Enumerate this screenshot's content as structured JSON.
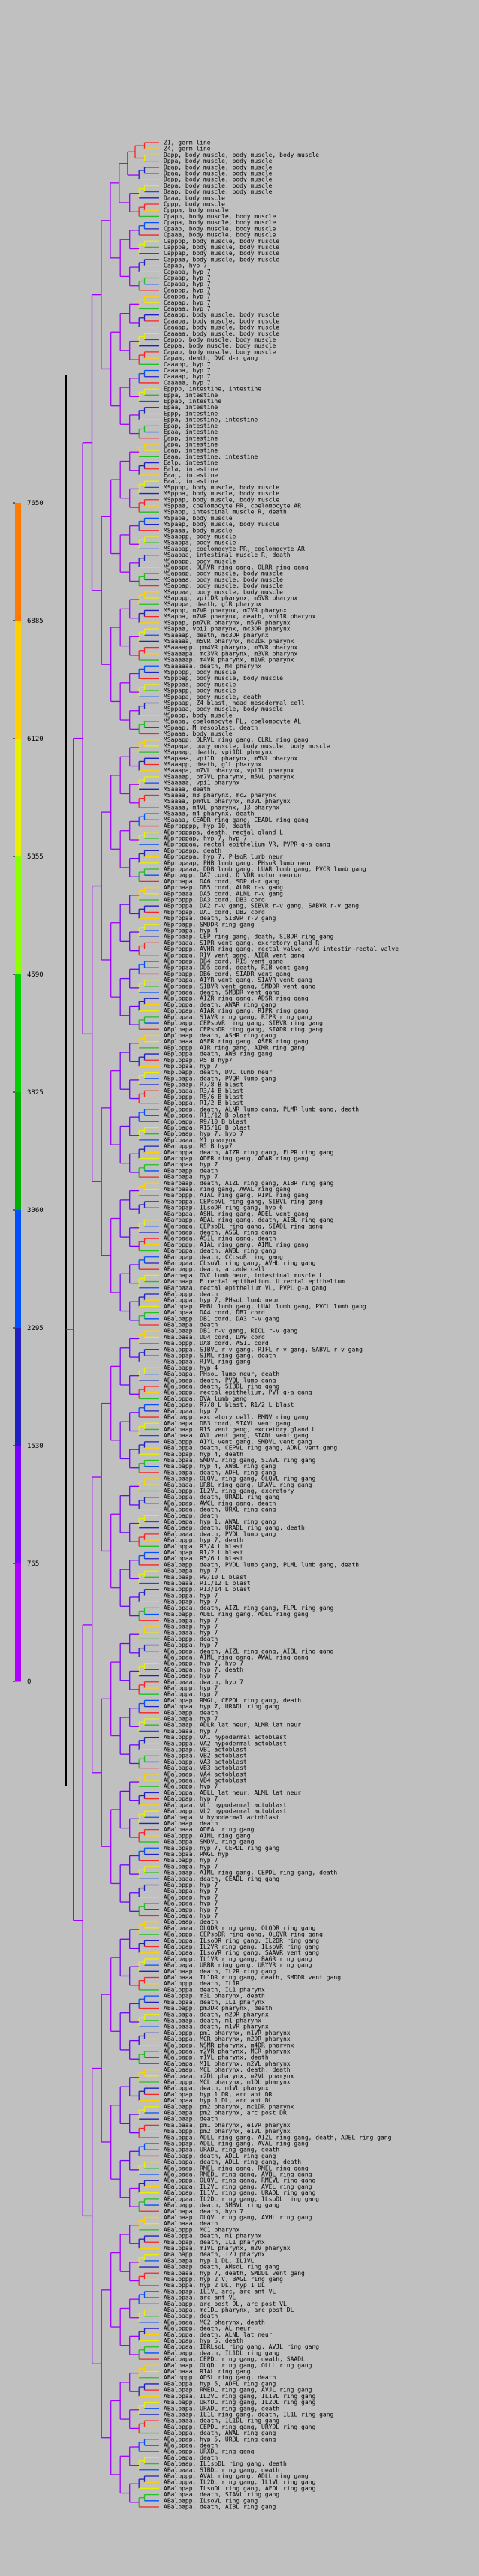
{
  "legend": {
    "ticks": [
      "7650",
      "6885",
      "6120",
      "5355",
      "4590",
      "3825",
      "3060",
      "2295",
      "1530",
      "765",
      "0"
    ],
    "colors": [
      "#ff7a00",
      "#ffcf00",
      "#e8f000",
      "#8cff00",
      "#00d000",
      "#00b000",
      "#0050ff",
      "#2020c0",
      "#7a00ff",
      "#b000ff"
    ]
  },
  "tree": {
    "labels": [
      "Z1, germ line",
      "Z4, germ line",
      "Dapp, body muscle, body muscle, body muscle",
      "Dppa, body muscle, body muscle",
      "Dpap, body muscle, body muscle",
      "Dpaa, body muscle, body muscle",
      "Dapp, body muscle, body muscle",
      "Dapa, body muscle, body muscle",
      "Daap, body muscle, body muscle",
      "Daaa, body muscle",
      "Cppp, body muscle",
      "Cpppa, body muscle",
      "Cpapp, body muscle, body muscle",
      "Cpapa, body muscle, body muscle",
      "Cpaap, body muscle, body muscle",
      "Cpaaa, body muscle, body muscle",
      "Capppp, body muscle, body muscle",
      "Capppa, body muscle, body muscle",
      "Cappap, body muscle, body muscle",
      "Cappaa, body muscle, body muscle",
      "Capap, hyp 7",
      "Capapa, hyp 7",
      "Capaap, hyp 7",
      "Capaaa, hyp 7",
      "Caappp, hyp 7",
      "Caappa, hyp 7",
      "Caapap, hyp 7",
      "Caapaa, hyp 7",
      "Caaapp, body muscle, body muscle",
      "Caaapa, body muscle, body muscle",
      "Caaaap, body muscle, body muscle",
      "Caaaaa, body muscle, body muscle",
      "Cappp, body muscle, body muscle",
      "Cappa, body muscle, body muscle",
      "Capap, body muscle, body muscle",
      "Capaa, death, DVC d-r gang",
      "Caaapp, hyp 7",
      "Caaapa, hyp 7",
      "Caaaap, hyp 7",
      "Caaaaa, hyp 7",
      "Epppp, intestine, intestine",
      "Eppa, intestine",
      "Eppap, intestine",
      "Epaa, intestine",
      "Eppp, intestine",
      "Eppa, intestine, intestine",
      "Epap, intestine",
      "Epaa, intestine",
      "Eapp, intestine",
      "Eapa, intestine",
      "Eaap, intestine",
      "Eaaa, intestine, intestine",
      "Ealp, intestine",
      "Eala, intestine",
      "Eaar, intestine",
      "Eaal, intestine",
      "MSpppp, body muscle, body muscle",
      "MSpppa, body muscle, body muscle",
      "MSppap, body muscle, body muscle",
      "MSppaa, coelomocyte PR, coelomocyte AR",
      "MSpapp, intestinal muscle R, death",
      "MSpapa, body muscle",
      "MSpaap, body muscle, body muscle",
      "MSpaaa, body muscle",
      "MSaappp, body muscle",
      "MSaappa, body muscle",
      "MSaapap, coelomocyte PR, coelomocyte AR",
      "MSaapaa, intestinal muscle R, death",
      "MSapapp, body muscle",
      "MSapapa, OLRVR ring gang, OLRR ring gang",
      "MSapaap, body muscle, body muscle",
      "MSapaaa, body muscle, body muscle",
      "MSappap, body muscle, body muscle",
      "MSappaa, body muscle, body muscle",
      "MSapppp, vpi1DR pharynx, m5VR pharynx",
      "MSapppa, death, g1R pharynx",
      "MSappp, m7VR pharynx, m7VR pharynx",
      "MSappa, m7VR pharynx, death, vpi1R pharynx",
      "MSapap, pm7VR pharynx, m5VR pharynx",
      "MSapaa, vpi1 pharynx, mc3DR pharynx",
      "MSaaaap, death, mc3DR pharynx",
      "MSaaaaa, m5VR pharynx, mc2DR pharynx",
      "MSaaaapp, pm4VR pharynx, m3VR pharynx",
      "MSaaaapa, mc3VR pharynx, m3VR pharynx",
      "MSaaaaap, m4VR pharynx, m1VR pharynx",
      "MSaaaaaa, death, M4 pharynx",
      "MSppppp, body muscle",
      "MSpppap, body muscle, body muscle",
      "MSpppaa, body muscle",
      "MSppapp, body muscle",
      "MSppapa, body muscle, death",
      "MSppaap, Z4 blast, head mesodermal cell",
      "MSppaaa, body muscle, body muscle",
      "MSpapp, body muscle",
      "MSpapa, coelomocyte PL, coelomocyte AL",
      "MSpaap, M mesoblast, death",
      "MSpaaa, body muscle",
      "MSapapp, OLRVL ring gang, CLRL ring gang",
      "MSapapa, body muscle, body muscle, body muscle",
      "MSapaap, death, vpi1DL pharynx",
      "MSapaaa, vpi1DL pharynx, m5VL pharynx",
      "MSaaapp, death, g1L pharynx",
      "MSaaapa, m7VL pharynx, vpi1L pharynx",
      "MSaaaap, pm7VL pharynx, m5VL pharynx",
      "MSaaaaa, vpi1 pharynx",
      "MSaaaa, death",
      "MSaaaa, m3 pharynx, mc2 pharynx",
      "MSaaaa, pm4VL pharynx, m3VL pharynx",
      "MSaaaa, m4VL pharynx, I3 pharynx",
      "MSaaaa, m4 pharynx, death",
      "MSaaaa, CEADR ring gang, CEADL ring gang",
      "ABprppppp, hyp 10, death",
      "ABprpppppa, death, rectal gland L",
      "ABprpppap, hyp 7, hyp 7",
      "ABprpppaa, rectal epithelium VR, PVPR g-a gang",
      "ABprppapp, death",
      "ABprppapa, hyp 7, PHsoR lumb neur",
      "ABprppaap, PHB lumb gang, PHsoR lumb neur",
      "ABprppaaa, DDB lumb gang, LUAR lumb gang, PVCR lumb gang",
      "ABprpapp, DA7 cord, D VDR motor neuron",
      "ABprpapa, DA6 cord, SDP d-r gang",
      "ABprpaap, DB5 cord, ALNR r-v gang",
      "ABprpaaa, DA5 cord, ALNL r-v gang",
      "ABprpppp, DA3 cord, DB3 cord",
      "ABprpppa, DA2 r-v gang, SIBVR r-v gang, SABVR r-v gang",
      "ABprppap, DA1 cord, DB2 cord",
      "ABprppaa, death, SIBVR r-v gang",
      "ABprpapp, SMDDR ring gang",
      "ABprpapa, hyp 4",
      "ABprpaap, CEP ring gang, death, SIBDR ring gang",
      "ABprpaaa, SIPR vent gang, excretory gland R",
      "ABprpppp, AVHR ring gang, rectal valve, v/d intestin-rectal valve",
      "ABprpppa, RIV vent gang, AIBR vent gang",
      "ABprppap, DB4 cord, RIS vent gang",
      "ABprppaa, DD5 cord, death, RIB vent gang",
      "ABprpapp, DB6 cord, SIADR vent gang",
      "ABprpapa, AIYR vent gang, SIAVR vent gang",
      "ABprpaap, SIBVR vent gang, SMDDR vent gang",
      "ABprpaaa, death, SMBDR vent gang",
      "ABplpppp, AIZR ring gang, ADSR ring gang",
      "ABplpppa, death, AWAR ring gang",
      "ABplppap, AIAR ring gang, RIPR ring gang",
      "ABplppaa, SIAVR ring gang, RIPR ring gang",
      "ABplpapp, CEPsoVR ring gang, SIBVR ring gang",
      "ABplpapa, CEPsoDR ring gang, SIADR ring gang",
      "ABplpaap, death, ASHR ring gang",
      "ABplpaaa, ASER ring gang, ASER ring gang",
      "ABplpppp, AIR ring gang, AIMR ring gang",
      "ABplpppa, death, AWB ring gang",
      "ABplppap, R5 B hyp7",
      "ABplppaa, hyp 7",
      "ABplpapp, death, DVC lumb neur",
      "ABplpapa, death, PVQR lumb gang",
      "ABplpaap, R7/8 B blast",
      "ABplpaaa, R3/4 B blast",
      "ABplpppp, R5/6 B blast",
      "ABplpppa, R1/2 B blast",
      "ABplppap, death, ALNR lumb gang, PLMR lumb gang, death",
      "ABplppaa, R11/12 B blast",
      "ABplpapp, R9/10 B blast",
      "ABplpapa, R15/16 B blast",
      "ABplpaap, hyp 7, hyp 7",
      "ABplpaaa, M1 pharynx",
      "ABarpppp, R5 B hyp7",
      "ABarpppa, death, AIZR ring gang, FLPR ring gang",
      "ABarppap, ADER ring gang, ADAR ring gang",
      "ABarppaa, hyp 7",
      "ABarpapp, death",
      "ABarpapa, hyp 7",
      "ABarpaap, death, AIZL ring gang, AIBR ring gang",
      "ABarpaaa, ring gang, AWAL ring gang",
      "ABarpppp, AIAL ring gang, RIPL ring gang",
      "ABarpppa, CEPsoVL ring gang, SIBVL ring gang",
      "ABarppap, ILsoDR ring gang, hyp 6",
      "ABarppaa, ASHL ring gang, ADEL vent gang",
      "ABarpapp, ADAL ring gang, death, AIBL ring gang",
      "ABarpapa, CEPsoDL ring gang, SIADL ring gang",
      "ABarpaap, death, ASGL ring gang",
      "ABarpaaa, ASIL ring gang, death",
      "ABarpppp, AIAL ring gang, AIML ring gang",
      "ABarpppa, death, AWBL ring gang",
      "ABarppap, death, CCLsoR ring gang",
      "ABarppaa, CLsoVL ring gang, AVHL ring gang",
      "ABarpapp, death, arcade cell",
      "ABarpapa, DVC lumb neur, intestinal muscle L",
      "ABarpaap, F rectal epithelium, U rectal epithelium",
      "ABarpaaa, rectal epithelium VL, PVPL g-a gang",
      "ABalpppp, death",
      "ABalpppa, hyp 7, PHsoL lumb neur",
      "ABalppap, PHBL lumb gang, LUAL lumb gang, PVCL lumb gang",
      "ABalppaa, DA4 cord, DB7 cord",
      "ABalpapp, DB1 cord, DA3 r-v gang",
      "ABalpapa, death",
      "ABalpaap, DB1 r-v gang, RICL r-v gang",
      "ABalpaaa, DD4 cord, DA9 cord",
      "ABalpppp, DA8 cord, AS11 cord",
      "ABalpppa, SIBVL r-v gang, RIFL r-v gang, SABVL r-v gang",
      "ABalppap, SIML ring gang, death",
      "ABalppaa, RIVL ring gang",
      "ABalpapp, hyp 4",
      "ABalpapa, PHsoL lumb neur, death",
      "ABalpaap, death, PVQL lumb gang",
      "ABalpaaa, death, SIBDL ring gang",
      "ABalpppp, rectal epithelium, PVT g-a gang",
      "ABalpppa, DVA lumb gang",
      "ABalppap, R7/8 L blast, R1/2 L blast",
      "ABalppaa, hyp 7",
      "ABalpapp, excretory cell, BMNV ring gang",
      "ABalpapa, DB3 cord, SIAVL vent gang",
      "ABalpaap, RIS vent gang, excretory gland L",
      "ABalpaaa, AVL vent gang, SIADL vent gang",
      "ABalpppp, AIYL vent gang, SMDVL vent gang",
      "ABalpppa, death, CEPVL ring gang, ADNL vent gang",
      "ABalppap, hyp 4, death",
      "ABalppaa, SMDVL ring gang, SIAVL ring gang",
      "ABalpapp, hyp 4, AWBL ring gang",
      "ABalpapa, death, ADFL ring gang",
      "ABalpaap, OLQVL ring gang, OLQVL ring gang",
      "ABalpaaa, URBL ring gang, URAVL ring gang",
      "ABalpppp, IL2VL ring gang, excretory",
      "ABalpppa, death, URADL ring gang",
      "ABalppap, AWCL ring gang, death",
      "ABalppaa, death, URXL ring gang",
      "ABalpapp, death",
      "ABalpapa, hyp 1, AWAL ring gang",
      "ABalpaap, death, URADL ring gang, death",
      "ABalpaaa, death, PVDL lumb gang",
      "ABalpppp, hyp 7, death",
      "ABalpppa, R3/4 L blast",
      "ABalppap, R1/2 L blast",
      "ABalppaa, R5/6 L blast",
      "ABalpapp, death, PVDL lumb gang, PLML lumb gang, death",
      "ABalpapa, hyp 7",
      "ABalpaap, R9/10 L blast",
      "ABalpaaa, R11/12 L blast",
      "ABalpppp, R13/14 L blast",
      "ABalpppa, hyp 7",
      "ABalppap, hyp 7",
      "ABalppaa, death, AIZL ring gang, FLPL ring gang",
      "ABalpapp, ADEL ring gang, ADEL ring gang",
      "ABalpapa, hyp 7",
      "ABalpaap, hyp 7",
      "ABalpaaa, hyp 7",
      "ABalpppp, death",
      "ABalpppa, hyp 7",
      "ABalppap, death, AIZL ring gang, AIBL ring gang",
      "ABalppaa, AIML ring gang, AWAL ring gang",
      "ABalpapp, hyp 7, hyp 7",
      "ABalpapa, hyp 7, death",
      "ABalpaap, hyp 7",
      "ABalpaaa, death, hyp 7",
      "ABalpppp, hyp 7",
      "ABalpppa, hyp 7",
      "ABalppap, RMGL, CEPDL ring gang, death",
      "ABalppaa, hyp 7, URADL ring gang",
      "ABalpapp, death",
      "ABalpapa, hyp 7",
      "ABalpaap, ADLR lat neur, ALMR lat neur",
      "ABalpaaa, hyp 7",
      "ABalpppp, VA1 hypodermal actoblast",
      "ABalpppa, VA2 hypodermal actoblast",
      "ABalppap, VB1 actoblast",
      "ABalppaa, VB2 actoblast",
      "ABalpapp, VA3 actoblast",
      "ABalpapa, VB3 actoblast",
      "ABalpaap, VA4 actoblast",
      "ABalpaaa, VB4 actoblast",
      "ABalpppp, hyp 7",
      "ABalpppa, ADLL lat neur, ALML lat neur",
      "ABalppap, hyp 7",
      "ABalppaa, VL1 hypodermal actoblast",
      "ABalpapp, VL2 hypodermal actoblast",
      "ABalpapa, V hypodermal actoblast",
      "ABalpaap, death",
      "ABalpaaa, ADEAL ring gang",
      "ABalpppp, AIML ring gang",
      "ABalpppa, SMDVL ring gang",
      "ABalppap, hyp 7, CEPDL ring gang",
      "ABalppaa, RMGL hyp",
      "ABalpapp, hyp 7",
      "ABalpapa, hyp 7",
      "ABalpaap, AIML ring gang, CEPDL ring gang, death",
      "ABalpaaa, death, CEADL ring gang",
      "ABalpppp, hyp 7",
      "ABalpppa, hyp 7",
      "ABalppap, hyp 7",
      "ABalppaa, hyp 7",
      "ABalpapp, hyp 7",
      "ABalpapa, hyp 7",
      "ABalpaap, death",
      "ABalpaaa, OLQDR ring gang, OLQDR ring gang",
      "ABalpppp, CEPsoDR ring gang, OLQVR ring gang",
      "ABalpppa, ILsoDR ring gang, IL2DR ring gang",
      "ABalppap, IL2VR ring gang, ILsoVR ring gang",
      "ABalppaa, ILsoVR ring gang, SAAVR vent gang",
      "ABalpapp, IL1VR ring gang, BAGR ring gang",
      "ABalpapa, URBR ring gang, URYVR ring gang",
      "ABalpaap, death, IL2R ring gang",
      "ABalpaaa, IL1DR ring gang, death, SMDDR vent gang",
      "ABalpppp, death, IL1R",
      "ABalpppa, death, IL1 pharynx",
      "ABalppap, m3L pharynx, death",
      "ABalppaa, death, IL1 pharynx",
      "ABalpapp, pm3DR pharynx, death",
      "ABalpapa, death, m2DR pharynx",
      "ABalpaap, death, m1 pharynx",
      "ABalpaaa, death, m1VR pharynx",
      "ABalpppp, pm1 pharynx, m1VR pharynx",
      "ABalpppa, MCR pharynx, m2DR pharynx",
      "ABalppap, NSMR pharynx, m4DR pharynx",
      "ABalppaa, m2VR pharynx, MCR pharynx",
      "ABalpapp, m1VL pharynx, death",
      "ABalpapa, MIL pharynx, m2VL pharynx",
      "ABalpaap, MCL pharynx, death, death",
      "ABalpaaa, m2DL pharynx, m2VL pharynx",
      "ABalpppp, MCL pharynx, m1DL pharynx",
      "ABalpppa, death, m1VL pharynx",
      "ABalppap, hyp 1 DR, arc ant DR",
      "ABalppaa, hyp 1 DL, arc ant DL",
      "ABalpapp, pm2 pharynx, mc1DR pharynx",
      "ABalpapa, pm2 pharynx, arc post DR",
      "ABalpaap, death",
      "ABalpaaa, pm1 pharynx, e1VR pharynx",
      "ABalpppp, pm2 pharynx, e1VL pharynx",
      "ABalpppa, ADLL ring gang, AIZL ring gang, death, ADEL ring gang",
      "ABalppap, ADLL ring gang, AVAL ring gang",
      "ABalppaa, URADL ring gang, death",
      "ABalpapp, death, ADLL ring gang",
      "ABalpapa, death, ADLL ring gang, death",
      "ABalpaap, RMEL ring gang, RMEL ring gang",
      "ABalpaaa, RMEDL ring gang, AVBL ring gang",
      "ABalpppp, OLQVL ring gang, RMEVL ring gang",
      "ABalpppa, IL2VL ring gang, AVEL ring gang",
      "ABalppap, IL1VL ring gang, URADL ring gang",
      "ABalppaa, IL2DL ring gang, ILsoDL ring gang",
      "ABalpapp, death, SMBVL ring gang",
      "ABalpapa, death, hyp 7",
      "ABalpaap, OLQVL ring gang, AVHL ring gang",
      "ABalpaaa, death",
      "ABalpppp, MC1 pharynx",
      "ABalpppa, death, m1 pharynx",
      "ABalppap, death, IL1 pharynx",
      "ABalppaa, m1VL pharynx, m2V pharynx",
      "ABalpapp, death, I2D pharynx",
      "ABalpapa, hyp 1 DL, IL1VL",
      "ABalpaap, death, AMsoL ring gang",
      "ABalpaaa, hyp 7, death, SMDDL vent gang",
      "ABalpppp, hyp 2 V, BAGL ring gang",
      "ABalpppa, hyp 2 DL, hyp 1 DL",
      "ABalppap, IL1VL arc, arc ant VL",
      "ABalppaa, arc ant VL",
      "ABalpapp, arc post DL, arc post VL",
      "ABalpapa, mc1DL pharynx, arc post DL",
      "ABalpaap, death",
      "ABalpaaa, MC2 pharynx, death",
      "ABalpppp, death, AL neur",
      "ABalpppa, death, ALNL lat neur",
      "ABalppap, hyp 5, death",
      "ABalppaa, IBRLsoL ring gang, AVJL ring gang",
      "ABalpapp, death, IL1DL ring gang",
      "ABalpapa, CEPDL ring gang, death, SAADL",
      "ABalpaap, OLQDL ring gang, OLLL ring gang",
      "ABalpaaa, RIAL ring gang",
      "ABalpppp, ADSL ring gang, death",
      "ABalpppa, hyp 5, ADFL ring gang",
      "ABalppap, RMEDL ring gang, AVJL ring gang",
      "ABalppaa, IL2VL ring gang, IL1VL ring gang",
      "ABalpapp, URYDL ring gang, IL2DL ring gang",
      "ABalpapa, URADL ring gang, death",
      "ABalpaap, IL1L ring gang, death, IL1L ring gang",
      "ABalpaaa, death, IL1DL ring gang",
      "ABalpppp, CEPDL ring gang, URYDL ring gang",
      "ABalpppa, death, AWAL ring gang",
      "ABalppap, hyp 5, URBL ring gang",
      "ABalppaa, death",
      "ABalpapp, URXDL ring gang",
      "ABalpapa, death",
      "ABalpaap, IL1soDL ring gang, death",
      "ABalpaaa, SIBDL ring gang, death",
      "ABalpppp, AVAL ring gang, ADLL ring gang",
      "ABalpppa, IL2DL ring gang, IL1VL ring gang",
      "ABalppap, ILsoDL ring gang, AFDL ring gang",
      "ABalppaa, death, SIAVL ring gang",
      "ABalpapp, ILsoVL ring gang",
      "ABalpapa, death, AIBL ring gang"
    ]
  }
}
